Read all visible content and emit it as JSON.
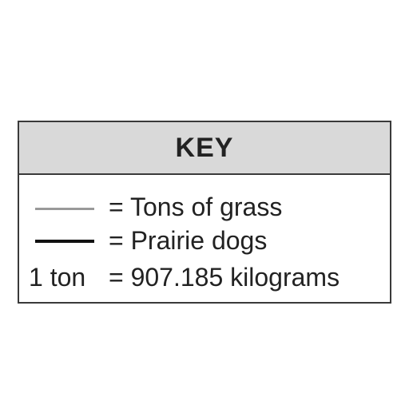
{
  "key": {
    "title": "KEY",
    "entries": [
      {
        "symbol": "gray-line",
        "text": "= Tons of grass",
        "color": "#999999"
      },
      {
        "symbol": "black-line",
        "text": "= Prairie dogs",
        "color": "#111111"
      },
      {
        "symbol_text": "1 ton",
        "text": "= 907.185 kilograms"
      }
    ]
  }
}
